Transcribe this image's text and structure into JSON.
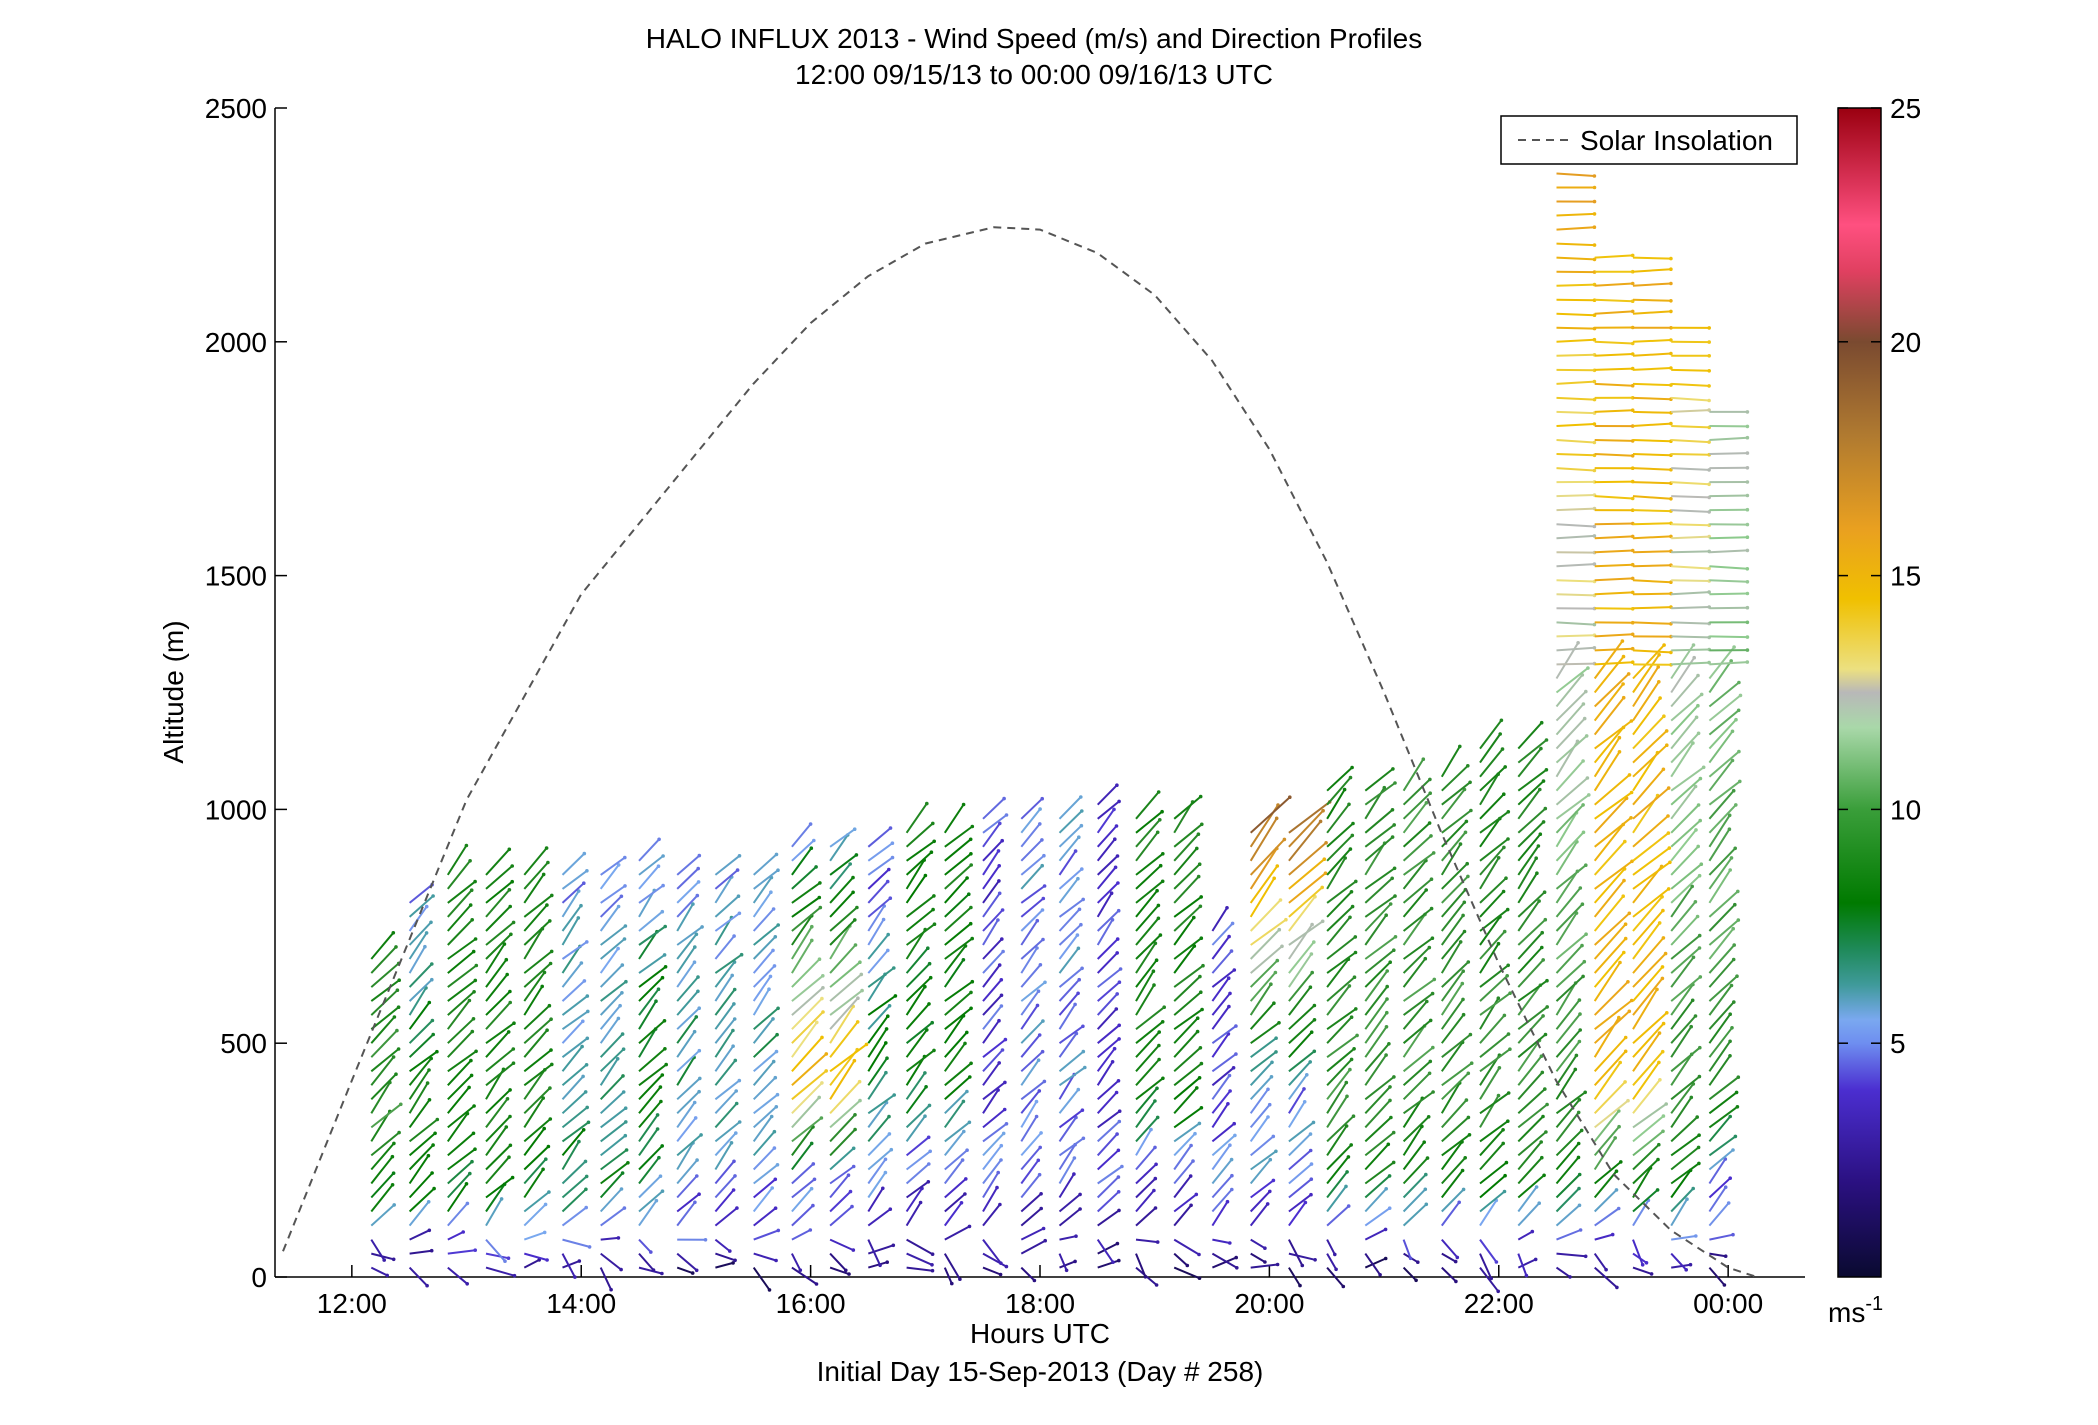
{
  "chart_data": {
    "type": "line",
    "title": "HALO INFLUX 2013 - Wind Speed (m/s) and Direction Profiles",
    "subtitle": "12:00 09/15/13 to 00:00 09/16/13  UTC",
    "xlabel": "Hours UTC",
    "xlabel2": "Initial Day 15-Sep-2013 (Day # 258)",
    "ylabel": "Altitude (m)",
    "xlim": [
      11.33,
      24.67
    ],
    "ylim": [
      0,
      2500
    ],
    "xticks": [
      12,
      14,
      16,
      18,
      20,
      22,
      24
    ],
    "xtick_labels": [
      "12:00",
      "14:00",
      "16:00",
      "18:00",
      "20:00",
      "22:00",
      "00:00"
    ],
    "yticks": [
      0,
      500,
      1000,
      1500,
      2000,
      2500
    ],
    "ytick_labels": [
      "0",
      "500",
      "1000",
      "1500",
      "2000",
      "2500"
    ],
    "legend": {
      "position": "top-right",
      "entries": [
        "Solar Insolation"
      ]
    },
    "colorbar": {
      "ticks": [
        5,
        10,
        15,
        20,
        25
      ],
      "tick_labels": [
        "5",
        "10",
        "15",
        "20",
        "25"
      ],
      "unit_base": "ms",
      "unit_exp": "-1",
      "range": [
        0,
        25
      ]
    },
    "series": [
      {
        "name": "Solar Insolation",
        "style": "dashed",
        "color": "#555555",
        "x": [
          11.4,
          12.0,
          13.0,
          14.0,
          15.0,
          15.5,
          16.0,
          16.5,
          17.0,
          17.6,
          18.0,
          18.5,
          19.0,
          19.5,
          20.0,
          20.5,
          21.0,
          21.5,
          22.0,
          22.5,
          23.0,
          23.5,
          24.0,
          24.25
        ],
        "y": [
          55,
          420,
          1020,
          1460,
          1760,
          1910,
          2040,
          2140,
          2210,
          2245,
          2240,
          2190,
          2100,
          1960,
          1770,
          1530,
          1250,
          950,
          670,
          420,
          220,
          100,
          20,
          0
        ]
      }
    ],
    "wind_profiles": {
      "note": "wind barbs: one profile every 20 minutes, 12:10 to 23:50 UTC; colour = wind speed in m/s",
      "profiles": [
        {
          "t": 12.17,
          "h": [
            30,
            70,
            130,
            280,
            700
          ],
          "spd": [
            3,
            3,
            7,
            9,
            8
          ]
        },
        {
          "t": 12.5,
          "h": [
            30,
            70,
            150,
            300,
            820
          ],
          "spd": [
            3,
            3,
            7,
            8,
            5
          ]
        },
        {
          "t": 13.0,
          "h": [
            30,
            70,
            150,
            320,
            860
          ],
          "spd": [
            3,
            4,
            7,
            8,
            8
          ]
        },
        {
          "t": 13.5,
          "h": [
            30,
            70,
            150,
            350,
            860
          ],
          "spd": [
            3,
            4,
            7,
            8,
            8
          ]
        },
        {
          "t": 14.0,
          "h": [
            30,
            80,
            180,
            350,
            880
          ],
          "spd": [
            3,
            4,
            7,
            6,
            5
          ]
        },
        {
          "t": 14.5,
          "h": [
            30,
            80,
            200,
            380,
            900
          ],
          "spd": [
            3,
            4,
            6,
            8,
            5
          ]
        },
        {
          "t": 15.0,
          "h": [
            30,
            80,
            200,
            400,
            860
          ],
          "spd": [
            2,
            4,
            5,
            6,
            5
          ]
        },
        {
          "t": 15.5,
          "h": [
            30,
            80,
            200,
            400,
            880
          ],
          "spd": [
            2,
            4,
            5,
            6,
            5
          ]
        },
        {
          "t": 16.0,
          "h": [
            30,
            80,
            200,
            400,
            920
          ],
          "spd": [
            2,
            4,
            5,
            15,
            5
          ]
        },
        {
          "t": 16.5,
          "h": [
            30,
            80,
            200,
            430,
            940
          ],
          "spd": [
            2,
            3,
            5,
            7,
            4
          ]
        },
        {
          "t": 17.0,
          "h": [
            30,
            80,
            200,
            400,
            960
          ],
          "spd": [
            2,
            3,
            4,
            7,
            8
          ]
        },
        {
          "t": 17.5,
          "h": [
            30,
            80,
            200,
            400,
            990
          ],
          "spd": [
            2,
            3,
            5,
            4,
            4
          ]
        },
        {
          "t": 18.0,
          "h": [
            30,
            80,
            200,
            400,
            1000
          ],
          "spd": [
            2,
            3,
            4,
            5,
            5
          ]
        },
        {
          "t": 18.5,
          "h": [
            30,
            80,
            200,
            400,
            1010
          ],
          "spd": [
            2,
            3,
            4,
            4,
            4
          ]
        },
        {
          "t": 19.0,
          "h": [
            30,
            80,
            200,
            400,
            1000
          ],
          "spd": [
            2,
            3,
            4,
            8,
            8
          ]
        },
        {
          "t": 19.5,
          "h": [
            30,
            80,
            200,
            400,
            740
          ],
          "spd": [
            2,
            3,
            5,
            4,
            4
          ]
        },
        {
          "t": 20.0,
          "h": [
            30,
            80,
            200,
            400,
            960
          ],
          "spd": [
            2,
            3,
            5,
            5,
            19
          ]
        },
        {
          "t": 20.5,
          "h": [
            30,
            80,
            200,
            400,
            1050
          ],
          "spd": [
            2,
            3,
            8,
            9,
            8
          ]
        },
        {
          "t": 21.0,
          "h": [
            30,
            80,
            200,
            400,
            1050
          ],
          "spd": [
            2,
            4,
            8,
            9,
            9
          ]
        },
        {
          "t": 21.5,
          "h": [
            30,
            80,
            200,
            400,
            1080
          ],
          "spd": [
            2,
            4,
            8,
            9,
            9
          ]
        },
        {
          "t": 22.0,
          "h": [
            30,
            80,
            200,
            400,
            1150
          ],
          "spd": [
            3,
            4,
            8,
            9,
            8
          ]
        },
        {
          "t": 22.5,
          "h": [
            30,
            80,
            200,
            400,
            2480
          ],
          "spd": [
            3,
            4,
            8,
            9,
            16
          ]
        },
        {
          "t": 23.0,
          "h": [
            30,
            80,
            200,
            400,
            2200
          ],
          "spd": [
            3,
            4,
            8,
            15,
            15
          ]
        },
        {
          "t": 23.5,
          "h": [
            30,
            80,
            200,
            400,
            2050
          ],
          "spd": [
            3,
            5,
            8,
            9,
            14
          ]
        },
        {
          "t": 23.83,
          "h": [
            30,
            80,
            200,
            400,
            1870
          ],
          "spd": [
            2,
            4,
            5,
            9,
            12
          ]
        }
      ]
    }
  }
}
